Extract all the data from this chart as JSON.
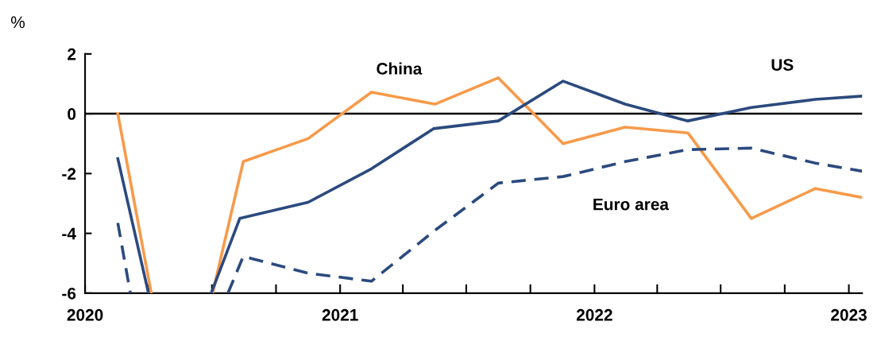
{
  "chart_data": {
    "type": "line",
    "ylabel": "%",
    "xlim": [
      "2020-01-01",
      "2023-01-20"
    ],
    "ylim": [
      -6,
      2
    ],
    "yticks": [
      -6,
      -4,
      -2,
      0,
      2
    ],
    "xticks": [
      {
        "value": "2020-01-01",
        "label": "2020"
      },
      {
        "value": "2020-04-01",
        "label": null
      },
      {
        "value": "2020-07-01",
        "label": null
      },
      {
        "value": "2020-10-01",
        "label": null
      },
      {
        "value": "2021-01-01",
        "label": "2021"
      },
      {
        "value": "2021-04-01",
        "label": null
      },
      {
        "value": "2021-07-01",
        "label": null
      },
      {
        "value": "2021-10-01",
        "label": null
      },
      {
        "value": "2022-01-01",
        "label": "2022"
      },
      {
        "value": "2022-04-01",
        "label": null
      },
      {
        "value": "2022-07-01",
        "label": null
      },
      {
        "value": "2022-10-01",
        "label": null
      },
      {
        "value": "2023-01-01",
        "label": "2023"
      }
    ],
    "ref_lines": [
      {
        "axis": "y",
        "value": 0,
        "color": "#000000",
        "line_style": "solid"
      }
    ],
    "grid": false,
    "legend": false,
    "marker": "none",
    "series": [
      {
        "name": "China",
        "color": "#f79a4a",
        "line_style": "solid",
        "x": [
          "2020-02-17",
          "2020-04-05",
          "2020-05-15",
          "2020-07-02",
          "2020-08-15",
          "2020-11-16",
          "2021-02-15",
          "2021-05-17",
          "2021-08-16",
          "2021-11-17",
          "2022-02-14",
          "2022-05-15",
          "2022-08-14",
          "2022-11-14",
          "2023-01-20"
        ],
        "values": [
          0,
          -6,
          null,
          -6,
          -1.6,
          -0.83,
          0.72,
          0.32,
          1.2,
          -1.0,
          -0.45,
          -0.64,
          -3.5,
          -2.5,
          -2.8
        ]
      },
      {
        "name": "US",
        "color": "#2b4a7e",
        "line_style": "solid",
        "x": [
          "2020-02-17",
          "2020-04-01",
          "2020-05-15",
          "2020-06-30",
          "2020-08-10",
          "2020-11-16",
          "2021-02-15",
          "2021-05-15",
          "2021-08-16",
          "2021-11-17",
          "2022-02-14",
          "2022-05-15",
          "2022-08-14",
          "2022-11-14",
          "2023-01-20"
        ],
        "values": [
          -1.5,
          -6,
          null,
          -6,
          -3.5,
          -2.96,
          -1.84,
          -0.5,
          -0.24,
          1.09,
          0.32,
          -0.24,
          0.21,
          0.48,
          0.59
        ]
      },
      {
        "name": "Euro area",
        "color": "#2b4a7e",
        "line_style": "dashed",
        "x": [
          "2020-02-17",
          "2020-03-06",
          "2020-05-15",
          "2020-07-24",
          "2020-08-15",
          "2020-11-16",
          "2021-02-15",
          "2021-05-17",
          "2021-08-16",
          "2021-11-17",
          "2022-02-14",
          "2022-05-15",
          "2022-08-14",
          "2022-11-14",
          "2023-01-20"
        ],
        "values": [
          -3.65,
          -6,
          null,
          -6,
          -4.77,
          -5.33,
          -5.6,
          -3.9,
          -2.32,
          -2.1,
          -1.6,
          -1.2,
          -1.15,
          -1.65,
          -1.92
        ]
      }
    ]
  }
}
